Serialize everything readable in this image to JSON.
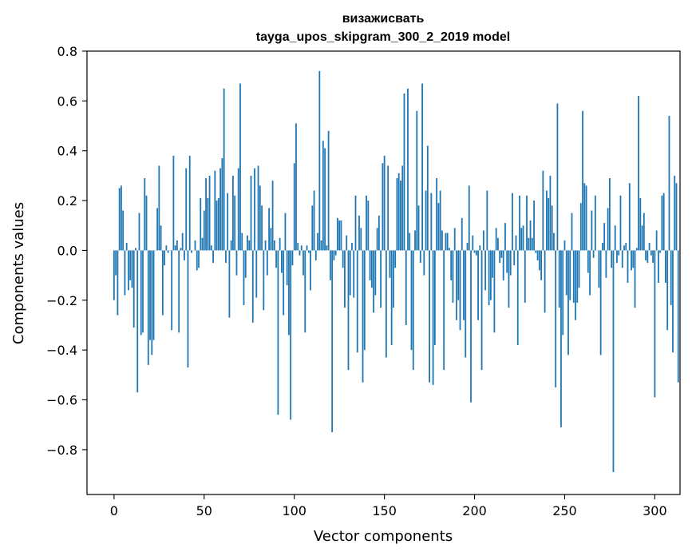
{
  "chart_data": {
    "type": "bar",
    "title": "визажисвать",
    "subtitle": "tayga_upos_skipgram_300_2_2019 model",
    "xlabel": "Vector components",
    "ylabel": "Components values",
    "xlim": [
      -15,
      314
    ],
    "ylim": [
      -0.98,
      0.8
    ],
    "xticks": [
      0,
      50,
      100,
      150,
      200,
      250,
      300
    ],
    "yticks": [
      -0.8,
      -0.6,
      -0.4,
      -0.2,
      0.0,
      0.2,
      0.4,
      0.6,
      0.8
    ],
    "ytick_labels": [
      "−0.8",
      "−0.6",
      "−0.4",
      "−0.2",
      "0.0",
      "0.2",
      "0.4",
      "0.6",
      "0.8"
    ],
    "bar_color": "#1f77b4",
    "values": [
      -0.2,
      -0.1,
      -0.26,
      0.25,
      0.26,
      0.16,
      -0.18,
      0.03,
      -0.16,
      -0.12,
      -0.15,
      -0.31,
      0.01,
      -0.57,
      0.15,
      -0.34,
      -0.33,
      0.29,
      0.22,
      -0.46,
      -0.36,
      -0.42,
      -0.36,
      0.0,
      0.17,
      0.34,
      0.1,
      -0.26,
      -0.06,
      0.02,
      -0.01,
      0.0,
      -0.32,
      0.38,
      0.02,
      0.04,
      -0.33,
      0.01,
      0.07,
      -0.04,
      0.33,
      -0.47,
      0.38,
      -0.01,
      0.0,
      0.04,
      -0.08,
      -0.07,
      0.21,
      0.05,
      0.16,
      0.29,
      0.21,
      0.3,
      0.02,
      -0.05,
      0.32,
      0.2,
      0.21,
      0.33,
      0.37,
      0.65,
      -0.05,
      0.23,
      -0.27,
      0.04,
      0.3,
      0.22,
      -0.1,
      0.33,
      0.67,
      0.07,
      -0.22,
      -0.11,
      0.06,
      0.04,
      0.3,
      -0.29,
      0.33,
      -0.19,
      0.34,
      0.26,
      0.18,
      -0.24,
      0.04,
      -0.1,
      0.17,
      0.09,
      0.28,
      0.04,
      -0.07,
      -0.66,
      0.05,
      -0.09,
      -0.26,
      0.15,
      -0.14,
      -0.34,
      -0.68,
      -0.06,
      0.35,
      0.51,
      0.03,
      -0.02,
      0.02,
      -0.1,
      -0.33,
      0.02,
      -0.01,
      -0.16,
      0.18,
      0.24,
      -0.04,
      0.07,
      0.72,
      0.04,
      0.44,
      0.41,
      0.02,
      0.48,
      -0.12,
      -0.73,
      -0.04,
      -0.02,
      0.13,
      0.12,
      0.12,
      -0.07,
      -0.23,
      0.06,
      -0.48,
      -0.18,
      0.03,
      -0.19,
      0.22,
      -0.41,
      0.14,
      0.09,
      -0.53,
      -0.4,
      0.22,
      0.2,
      -0.12,
      -0.15,
      -0.25,
      -0.18,
      0.09,
      0.14,
      -0.23,
      0.35,
      0.38,
      -0.43,
      0.34,
      -0.11,
      -0.38,
      -0.23,
      -0.07,
      0.29,
      0.31,
      0.28,
      0.34,
      0.63,
      -0.3,
      0.65,
      0.07,
      -0.4,
      -0.48,
      0.08,
      0.56,
      0.18,
      -0.05,
      0.67,
      -0.1,
      0.24,
      0.42,
      -0.53,
      0.23,
      -0.54,
      -0.38,
      0.29,
      0.19,
      0.24,
      0.08,
      -0.48,
      0.07,
      0.07,
      0.01,
      -0.12,
      -0.21,
      0.09,
      -0.28,
      -0.2,
      -0.32,
      0.13,
      -0.28,
      -0.43,
      0.03,
      0.26,
      -0.61,
      0.06,
      -0.01,
      -0.02,
      -0.28,
      0.02,
      -0.48,
      0.08,
      -0.16,
      0.24,
      -0.22,
      -0.2,
      -0.11,
      -0.33,
      0.09,
      0.05,
      -0.05,
      -0.03,
      -0.12,
      0.11,
      -0.09,
      -0.23,
      -0.1,
      0.23,
      -0.06,
      0.06,
      -0.38,
      0.22,
      0.09,
      0.1,
      -0.21,
      0.22,
      0.05,
      0.12,
      0.05,
      0.2,
      -0.01,
      -0.04,
      -0.08,
      -0.12,
      0.32,
      -0.25,
      0.24,
      0.21,
      0.3,
      0.18,
      0.07,
      -0.55,
      0.59,
      -0.23,
      -0.71,
      -0.34,
      0.04,
      -0.18,
      -0.42,
      -0.2,
      0.15,
      -0.21,
      -0.28,
      -0.21,
      -0.15,
      0.19,
      0.56,
      0.27,
      0.26,
      -0.09,
      -0.18,
      0.16,
      -0.03,
      0.22,
      0.0,
      -0.15,
      -0.42,
      0.03,
      0.11,
      -0.11,
      0.17,
      0.29,
      -0.07,
      -0.89,
      0.1,
      -0.05,
      -0.02,
      0.22,
      -0.07,
      0.02,
      0.03,
      -0.13,
      0.27,
      -0.08,
      -0.07,
      -0.23,
      0.01,
      0.62,
      0.21,
      0.1,
      0.15,
      -0.04,
      -0.05,
      0.03,
      -0.02,
      -0.05,
      -0.59,
      0.08,
      -0.13,
      -0.01,
      0.22,
      0.23,
      -0.13,
      -0.32,
      0.54,
      -0.22,
      -0.41,
      0.3,
      0.27,
      -0.53
    ]
  }
}
